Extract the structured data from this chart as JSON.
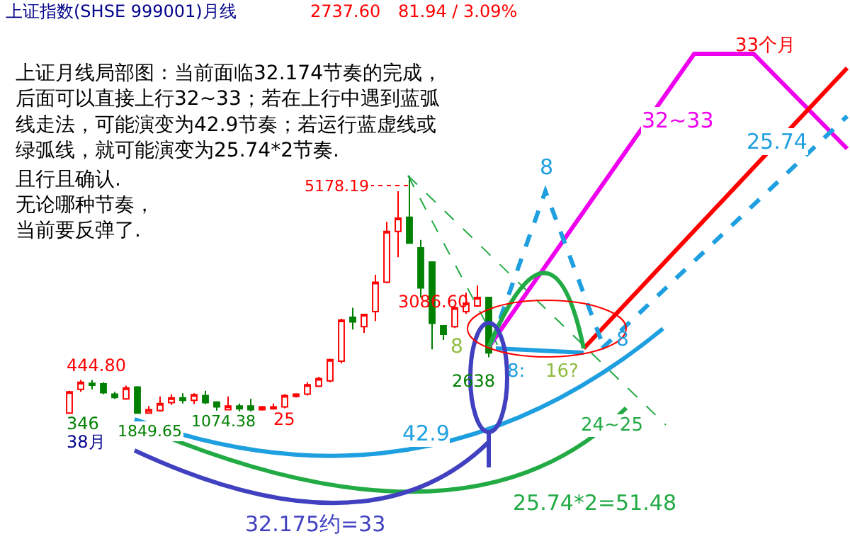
{
  "chart_data": {
    "type": "candlestick",
    "title": "上证指数(SHSE 999001)月线",
    "categories": [
      null,
      null,
      null,
      null,
      null,
      null,
      null,
      null,
      null,
      null,
      null,
      null,
      null,
      null,
      null,
      null,
      null,
      null,
      null,
      null,
      null,
      null,
      null,
      null,
      null,
      null,
      null,
      null,
      null,
      null,
      null,
      null,
      null,
      null,
      null,
      null,
      null,
      null
    ],
    "ohlc": [
      [
        1858,
        2170,
        1852,
        2155
      ],
      [
        2188,
        2320,
        2155,
        2287
      ],
      [
        2274,
        2320,
        2188,
        2247
      ],
      [
        2267,
        2287,
        2122,
        2142
      ],
      [
        2122,
        2155,
        2056,
        2076
      ],
      [
        2056,
        2241,
        2043,
        2208
      ],
      [
        2221,
        2234,
        1849.65,
        1858
      ],
      [
        1858,
        1957,
        1852,
        1904
      ],
      [
        1891,
        2089,
        1878,
        1990
      ],
      [
        2003,
        2122,
        1970,
        2069
      ],
      [
        2069,
        2135,
        1990,
        2036
      ],
      [
        2036,
        2135,
        1983,
        2115
      ],
      [
        2102,
        2168,
        1983,
        2003
      ],
      [
        2010,
        2023,
        1891,
        1944
      ],
      [
        1904,
        2089,
        1904,
        1957
      ],
      [
        1957,
        1990,
        1878,
        1917
      ],
      [
        1957,
        2056,
        1878,
        1904
      ],
      [
        1904,
        1957,
        1891,
        1944
      ],
      [
        1917,
        1990,
        1904,
        1944
      ],
      [
        1944,
        2122,
        1924,
        2102
      ],
      [
        2089,
        2135,
        2076,
        2122
      ],
      [
        2122,
        2287,
        2102,
        2254
      ],
      [
        2234,
        2366,
        2221,
        2340
      ],
      [
        2307,
        2617,
        2287,
        2604
      ],
      [
        2584,
        3178,
        2551,
        3158
      ],
      [
        3198,
        3330,
        3026,
        3132
      ],
      [
        3066,
        3244,
        2980,
        3237
      ],
      [
        3277,
        3792,
        3145,
        3686
      ],
      [
        3686,
        4531,
        3673,
        4399
      ],
      [
        4399,
        4960,
        4036,
        4584
      ],
      [
        4597,
        5178.19,
        4234,
        4234
      ],
      [
        4168,
        4280,
        3475,
        3607
      ],
      [
        3970,
        3970,
        2749,
        3112
      ],
      [
        3079,
        3079,
        2881,
        2960
      ],
      [
        3066,
        3343,
        3046,
        3330
      ],
      [
        3277,
        3541,
        3244,
        3396
      ],
      [
        3356,
        3640,
        3343,
        3475
      ],
      [
        3475,
        3475,
        2638,
        2700
      ]
    ],
    "colors": [
      "#ff0000",
      "#ff0000",
      "#008000",
      "#008000",
      "#008000",
      "#ff0000",
      "#008000",
      "#ff0000",
      "#ff0000",
      "#ff0000",
      "#008000",
      "#ff0000",
      "#008000",
      "#008000",
      "#ff0000",
      "#008000",
      "#008000",
      "#ff0000",
      "#ff0000",
      "#ff0000",
      "#ff0000",
      "#ff0000",
      "#ff0000",
      "#ff0000",
      "#ff0000",
      "#008000",
      "#ff0000",
      "#ff0000",
      "#ff0000",
      "#ff0000",
      "#008000",
      "#008000",
      "#008000",
      "#008000",
      "#ff0000",
      "#ff0000",
      "#ff0000",
      "#008000"
    ],
    "annotations": [
      "2737.60",
      "81.94 / 3.09%",
      "上证月线局部图：当前面临32.174节奏的完成，后面可以直接上行32~33；若在上行中遇到蓝弧线走法，可能演变为42.9节奏；若运行蓝虚线或绿弧线，就可能演变为25.74*2节奏.",
      "且行且确认.",
      "无论哪种节奏，",
      "当前要反弹了.",
      "5178.19",
      "3086.60",
      "444.80",
      "346",
      "38月",
      "1849.65",
      "1074.38",
      "25",
      "8",
      "2638",
      "8:",
      "16?",
      "8",
      "8",
      "24~25",
      "42.9",
      "32.175约=33",
      "25.74*2=51.48",
      "25.74",
      "32~33",
      "33个月"
    ]
  }
}
